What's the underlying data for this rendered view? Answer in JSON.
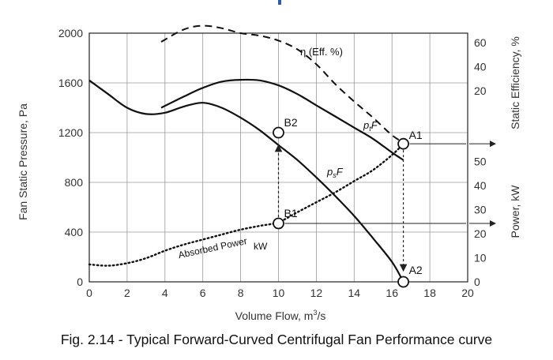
{
  "chart_data": {
    "type": "line",
    "xlabel_main": "Volume Flow, m",
    "xlabel_sup": "3",
    "xlabel_tail": "/s",
    "ylabel_left": "Fan Static Pressure, Pa",
    "ylabel_right_top": "Static Efficiency, %",
    "ylabel_right_bottom": "Power, kW",
    "xlim": [
      0,
      20
    ],
    "ylim": [
      0,
      2000
    ],
    "x_ticks": [
      "0",
      "2",
      "4",
      "6",
      "8",
      "10",
      "12",
      "14",
      "16",
      "18",
      "20"
    ],
    "y_ticks": [
      "0",
      "400",
      "800",
      "1200",
      "1600",
      "2000"
    ],
    "eff_ticks": [
      "20",
      "40",
      "60"
    ],
    "power_ticks": [
      "0",
      "10",
      "20",
      "30",
      "40",
      "50"
    ],
    "grid": true,
    "series": [
      {
        "id": "ps",
        "style": "solid",
        "x": [
          0,
          1,
          2,
          3,
          4,
          5,
          6,
          7,
          8,
          9,
          10,
          11,
          12,
          13,
          14,
          15,
          16,
          16.6
        ],
        "y": [
          1620,
          1510,
          1400,
          1350,
          1360,
          1410,
          1440,
          1400,
          1320,
          1220,
          1100,
          980,
          840,
          690,
          530,
          350,
          160,
          0
        ]
      },
      {
        "id": "pt",
        "style": "solid",
        "x": [
          3.8,
          5,
          6,
          7,
          8,
          9,
          10,
          11,
          12,
          13,
          14,
          15,
          16,
          16.6
        ],
        "y": [
          1400,
          1490,
          1560,
          1610,
          1625,
          1620,
          1580,
          1510,
          1420,
          1330,
          1240,
          1150,
          1040,
          980
        ]
      },
      {
        "id": "efficiency",
        "style": "dashed",
        "x": [
          3.8,
          5,
          6,
          7,
          8,
          9,
          10,
          11,
          12,
          13,
          14,
          15,
          16,
          16.6
        ],
        "y": [
          1930,
          2030,
          2060,
          2040,
          2000,
          1980,
          1940,
          1870,
          1750,
          1590,
          1450,
          1320,
          1180,
          1120
        ]
      },
      {
        "id": "power",
        "style": "dotted",
        "x": [
          0,
          1,
          2,
          3,
          4,
          5,
          6,
          7,
          8,
          9,
          10,
          11,
          12,
          13,
          14,
          15,
          16,
          16.6
        ],
        "y": [
          140,
          130,
          150,
          190,
          250,
          300,
          340,
          380,
          420,
          450,
          480,
          560,
          640,
          720,
          810,
          900,
          1020,
          1110
        ]
      }
    ],
    "points": [
      {
        "label": "B2",
        "x": 10,
        "y": 1200
      },
      {
        "label": "B1",
        "x": 10,
        "y": 470
      },
      {
        "label": "A1",
        "x": 16.6,
        "y": 1110
      },
      {
        "label": "A2",
        "x": 16.6,
        "y": 0
      }
    ],
    "annotations": {
      "efficiency_label": "η (Eff. %)",
      "pt_label_main": "p",
      "pt_label_sub": "t",
      "pt_label_tail": "F",
      "ps_label_main": "p",
      "ps_label_sub": "s",
      "ps_label_tail": "F",
      "absorbed_power": "Absorbed Power",
      "kw": "kW"
    }
  },
  "caption": "Fig. 2.14 - Typical Forward-Curved Centrifugal Fan Performance curve"
}
